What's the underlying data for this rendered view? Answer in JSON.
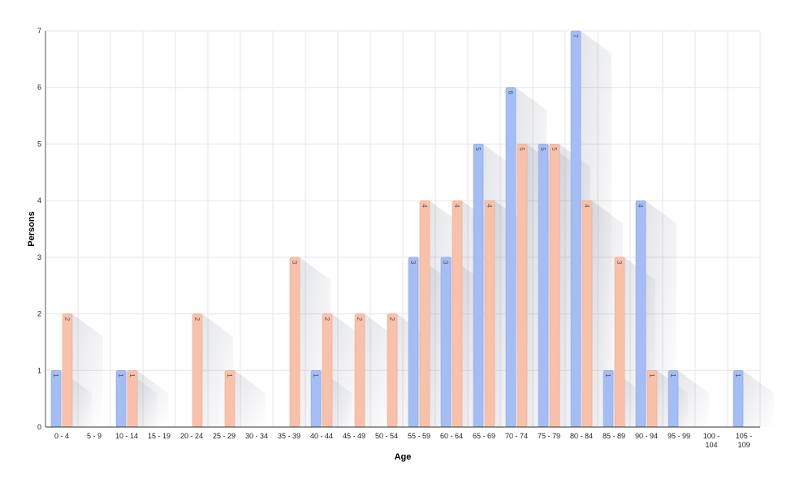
{
  "chart_data": {
    "type": "bar",
    "xlabel": "Age",
    "ylabel": "Persons",
    "ylim": [
      0,
      7
    ],
    "yticks": [
      "0",
      "1",
      "2",
      "3",
      "4",
      "5",
      "6",
      "7"
    ],
    "grid": true,
    "categories": [
      "0 - 4",
      "5 - 9",
      "10 - 14",
      "15 - 19",
      "20 - 24",
      "25 - 29",
      "30 - 34",
      "35 - 39",
      "40 - 44",
      "45 - 49",
      "50 - 54",
      "55 - 59",
      "60 - 64",
      "65 - 69",
      "70 - 74",
      "75 - 79",
      "80 - 84",
      "85 - 89",
      "90 - 94",
      "95 - 99",
      "100 - 104",
      "105 - 109"
    ],
    "series": [
      {
        "color": "#a4bdf5",
        "stroke": "#8aa6e8",
        "values": [
          1,
          0,
          1,
          0,
          0,
          0,
          0,
          0,
          1,
          0,
          0,
          3,
          3,
          5,
          6,
          5,
          7,
          1,
          4,
          1,
          0,
          1
        ]
      },
      {
        "color": "#f9c1aa",
        "stroke": "#eaa98e",
        "values": [
          2,
          0,
          1,
          0,
          2,
          1,
          0,
          3,
          2,
          2,
          2,
          4,
          4,
          4,
          5,
          5,
          4,
          3,
          1,
          0,
          0,
          0
        ]
      }
    ]
  }
}
